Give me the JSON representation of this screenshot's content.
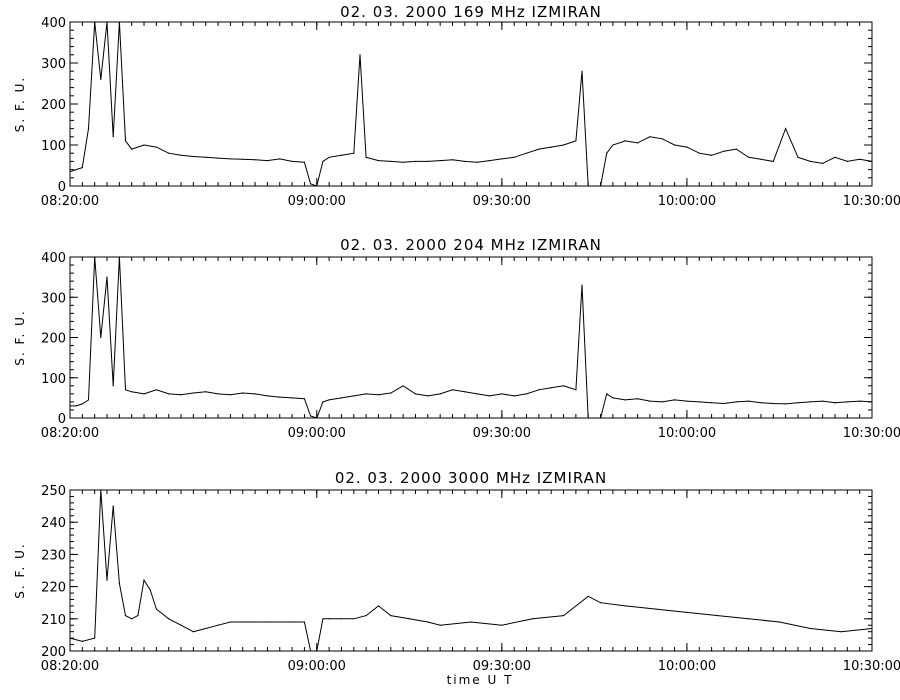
{
  "chart_data": [
    {
      "type": "line",
      "title": "02.  03.  2000    169  MHz     IZMIRAN",
      "ylabel": "S. F. U.",
      "xlabel": "",
      "xlim": [
        "08:20:00",
        "10:30:00"
      ],
      "ylim": [
        0,
        400
      ],
      "x_ticks": [
        "08:20:00",
        "09:00:00",
        "09:30:00",
        "10:00:00",
        "10:30:00"
      ],
      "y_ticks": [
        0,
        100,
        200,
        300,
        400
      ],
      "series": [
        {
          "x": [
            "08:20:00",
            "08:21:00",
            "08:22:00",
            "08:23:00",
            "08:24:00",
            "08:25:00",
            "08:26:00",
            "08:27:00",
            "08:28:00",
            "08:29:00",
            "08:30:00",
            "08:32:00",
            "08:34:00",
            "08:36:00",
            "08:38:00",
            "08:40:00",
            "08:42:00",
            "08:44:00",
            "08:46:00",
            "08:48:00",
            "08:50:00",
            "08:52:00",
            "08:54:00",
            "08:56:00",
            "08:58:00",
            "08:59:00",
            "09:00:00",
            "09:01:00",
            "09:02:00",
            "09:04:00",
            "09:06:00",
            "09:07:00",
            "09:08:00",
            "09:10:00",
            "09:12:00",
            "09:14:00",
            "09:16:00",
            "09:18:00",
            "09:20:00",
            "09:22:00",
            "09:24:00",
            "09:26:00",
            "09:28:00",
            "09:30:00",
            "09:32:00",
            "09:34:00",
            "09:36:00",
            "09:38:00",
            "09:40:00",
            "09:42:00",
            "09:43:00",
            "09:44:00",
            "09:45:00",
            "09:46:00",
            "09:47:00",
            "09:48:00",
            "09:50:00",
            "09:52:00",
            "09:54:00",
            "09:56:00",
            "09:58:00",
            "10:00:00",
            "10:02:00",
            "10:04:00",
            "10:06:00",
            "10:08:00",
            "10:10:00",
            "10:12:00",
            "10:14:00",
            "10:16:00",
            "10:18:00",
            "10:20:00",
            "10:22:00",
            "10:24:00",
            "10:26:00",
            "10:28:00",
            "10:30:00"
          ],
          "y": [
            35,
            40,
            45,
            140,
            400,
            260,
            400,
            120,
            400,
            110,
            90,
            100,
            95,
            80,
            75,
            72,
            70,
            68,
            66,
            65,
            64,
            62,
            66,
            60,
            58,
            5,
            0,
            60,
            70,
            75,
            80,
            320,
            70,
            62,
            60,
            58,
            60,
            60,
            62,
            64,
            60,
            58,
            62,
            66,
            70,
            80,
            90,
            95,
            100,
            110,
            280,
            0,
            0,
            0,
            80,
            100,
            110,
            105,
            120,
            115,
            100,
            95,
            80,
            75,
            85,
            90,
            70,
            65,
            60,
            140,
            70,
            60,
            55,
            70,
            60,
            65,
            60
          ]
        }
      ]
    },
    {
      "type": "line",
      "title": "02.  03.  2000    204  MHz     IZMIRAN",
      "ylabel": "S. F. U.",
      "xlabel": "",
      "xlim": [
        "08:20:00",
        "10:30:00"
      ],
      "ylim": [
        0,
        400
      ],
      "x_ticks": [
        "08:20:00",
        "09:00:00",
        "09:30:00",
        "10:00:00",
        "10:30:00"
      ],
      "y_ticks": [
        0,
        100,
        200,
        300,
        400
      ],
      "series": [
        {
          "x": [
            "08:20:00",
            "08:21:00",
            "08:22:00",
            "08:23:00",
            "08:24:00",
            "08:25:00",
            "08:26:00",
            "08:27:00",
            "08:28:00",
            "08:29:00",
            "08:30:00",
            "08:32:00",
            "08:34:00",
            "08:36:00",
            "08:38:00",
            "08:40:00",
            "08:42:00",
            "08:44:00",
            "08:46:00",
            "08:48:00",
            "08:50:00",
            "08:52:00",
            "08:54:00",
            "08:56:00",
            "08:58:00",
            "08:59:00",
            "09:00:00",
            "09:01:00",
            "09:02:00",
            "09:04:00",
            "09:06:00",
            "09:08:00",
            "09:10:00",
            "09:12:00",
            "09:14:00",
            "09:16:00",
            "09:18:00",
            "09:20:00",
            "09:22:00",
            "09:24:00",
            "09:26:00",
            "09:28:00",
            "09:30:00",
            "09:32:00",
            "09:34:00",
            "09:36:00",
            "09:38:00",
            "09:40:00",
            "09:42:00",
            "09:43:00",
            "09:44:00",
            "09:45:00",
            "09:46:00",
            "09:47:00",
            "09:48:00",
            "09:50:00",
            "09:52:00",
            "09:54:00",
            "09:56:00",
            "09:58:00",
            "10:00:00",
            "10:02:00",
            "10:04:00",
            "10:06:00",
            "10:08:00",
            "10:10:00",
            "10:12:00",
            "10:14:00",
            "10:16:00",
            "10:18:00",
            "10:20:00",
            "10:22:00",
            "10:24:00",
            "10:26:00",
            "10:28:00",
            "10:30:00"
          ],
          "y": [
            30,
            30,
            35,
            45,
            400,
            200,
            350,
            80,
            400,
            70,
            65,
            60,
            70,
            60,
            58,
            62,
            65,
            60,
            58,
            62,
            60,
            55,
            52,
            50,
            48,
            5,
            0,
            40,
            45,
            50,
            55,
            60,
            58,
            62,
            80,
            60,
            55,
            60,
            70,
            65,
            60,
            55,
            60,
            55,
            60,
            70,
            75,
            80,
            70,
            330,
            0,
            0,
            0,
            60,
            50,
            45,
            48,
            42,
            40,
            45,
            42,
            40,
            38,
            36,
            40,
            42,
            38,
            36,
            35,
            38,
            40,
            42,
            38,
            40,
            42,
            40
          ]
        }
      ]
    },
    {
      "type": "line",
      "title": "02.  03.  2000    3000  MHz     IZMIRAN",
      "ylabel": "S. F. U.",
      "xlabel": "time   U  T",
      "xlim": [
        "08:20:00",
        "10:30:00"
      ],
      "ylim": [
        200,
        250
      ],
      "x_ticks": [
        "08:20:00",
        "09:00:00",
        "09:30:00",
        "10:00:00",
        "10:30:00"
      ],
      "y_ticks": [
        200,
        210,
        220,
        230,
        240,
        250
      ],
      "series": [
        {
          "x": [
            "08:20:00",
            "08:22:00",
            "08:24:00",
            "08:25:00",
            "08:26:00",
            "08:27:00",
            "08:28:00",
            "08:29:00",
            "08:30:00",
            "08:31:00",
            "08:32:00",
            "08:33:00",
            "08:34:00",
            "08:36:00",
            "08:38:00",
            "08:40:00",
            "08:42:00",
            "08:44:00",
            "08:46:00",
            "08:48:00",
            "08:50:00",
            "08:52:00",
            "08:54:00",
            "08:56:00",
            "08:58:00",
            "08:59:00",
            "09:00:00",
            "09:01:00",
            "09:02:00",
            "09:04:00",
            "09:06:00",
            "09:08:00",
            "09:10:00",
            "09:12:00",
            "09:15:00",
            "09:18:00",
            "09:20:00",
            "09:25:00",
            "09:30:00",
            "09:35:00",
            "09:40:00",
            "09:44:00",
            "09:46:00",
            "09:50:00",
            "09:55:00",
            "10:00:00",
            "10:05:00",
            "10:10:00",
            "10:15:00",
            "10:20:00",
            "10:25:00",
            "10:30:00"
          ],
          "y": [
            204,
            203,
            204,
            250,
            222,
            245,
            221,
            211,
            210,
            211,
            222,
            219,
            213,
            210,
            208,
            206,
            207,
            208,
            209,
            209,
            209,
            209,
            209,
            209,
            209,
            198,
            198,
            210,
            210,
            210,
            210,
            211,
            214,
            211,
            210,
            209,
            208,
            209,
            208,
            210,
            211,
            217,
            215,
            214,
            213,
            212,
            211,
            210,
            209,
            207,
            206,
            207
          ]
        }
      ]
    }
  ]
}
